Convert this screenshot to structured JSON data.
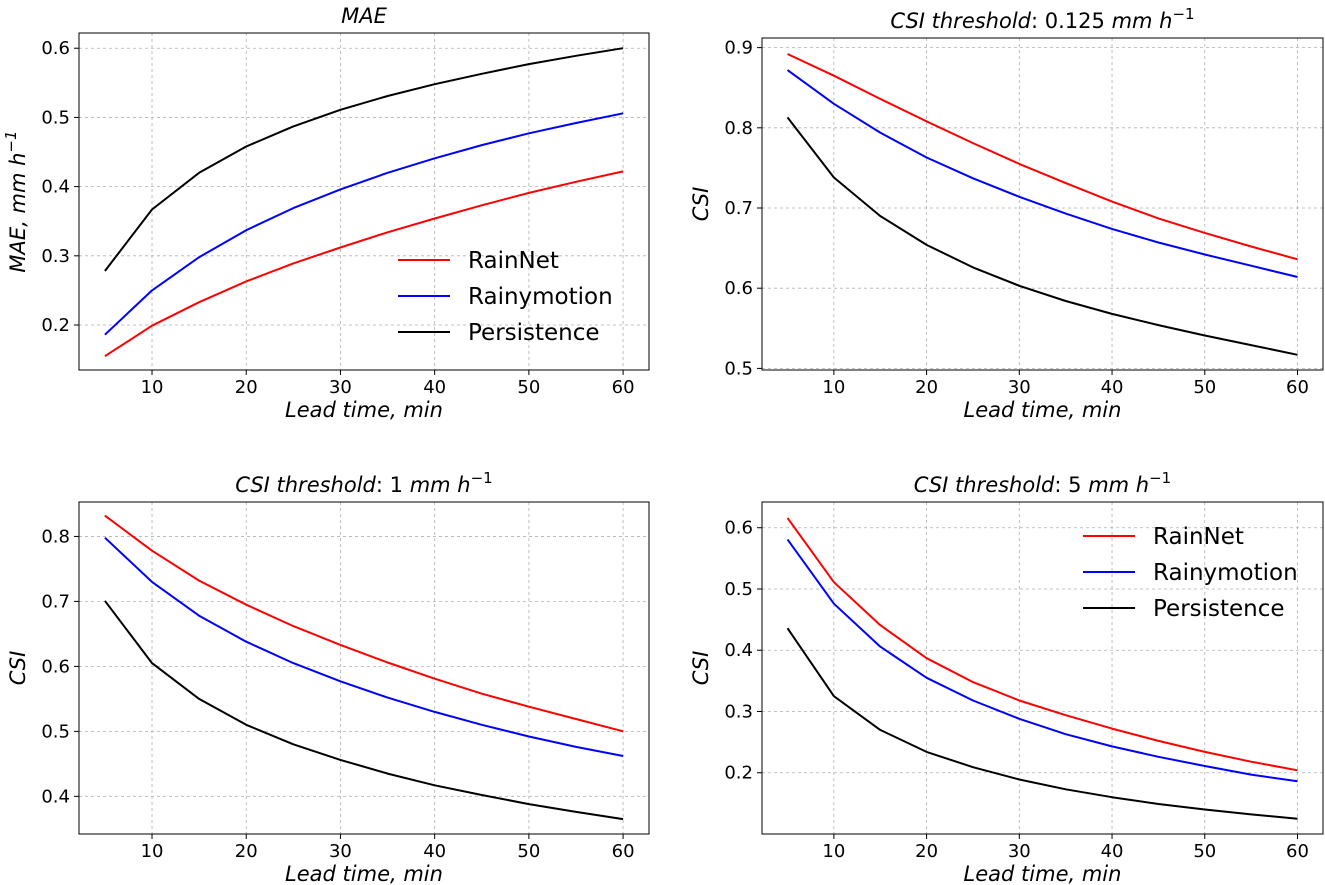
{
  "chart_data": [
    {
      "type": "line",
      "title": "MAE",
      "xlabel": "Lead time, min",
      "ylabel": "MAE, mm h⁻¹",
      "x": [
        5,
        10,
        15,
        20,
        25,
        30,
        35,
        40,
        45,
        50,
        55,
        60
      ],
      "xlim": [
        2.25,
        62.75
      ],
      "xticks": [
        10,
        20,
        30,
        40,
        50,
        60
      ],
      "ylim": [
        0.135,
        0.622
      ],
      "yticks": [
        0.2,
        0.3,
        0.4,
        0.5,
        0.6
      ],
      "ytick_labels": [
        "0.2",
        "0.3",
        "0.4",
        "0.5",
        "0.6"
      ],
      "grid": true,
      "legend": "lower-right",
      "series": [
        {
          "name": "RainNet",
          "color": "#ff0000",
          "values": [
            0.155,
            0.199,
            0.233,
            0.263,
            0.289,
            0.312,
            0.334,
            0.354,
            0.373,
            0.391,
            0.407,
            0.422
          ]
        },
        {
          "name": "Rainymotion",
          "color": "#0000ff",
          "values": [
            0.186,
            0.25,
            0.298,
            0.337,
            0.369,
            0.396,
            0.42,
            0.441,
            0.46,
            0.477,
            0.492,
            0.506
          ]
        },
        {
          "name": "Persistence",
          "color": "#000000",
          "values": [
            0.278,
            0.367,
            0.42,
            0.458,
            0.487,
            0.511,
            0.531,
            0.548,
            0.563,
            0.577,
            0.589,
            0.6
          ]
        }
      ]
    },
    {
      "type": "line",
      "title_prefix": "CSI threshold",
      "title_value": "0.125",
      "title_unit": "mm h⁻¹",
      "xlabel": "Lead time, min",
      "ylabel": "CSI",
      "x": [
        5,
        10,
        15,
        20,
        25,
        30,
        35,
        40,
        45,
        50,
        55,
        60
      ],
      "xlim": [
        2.25,
        62.75
      ],
      "xticks": [
        10,
        20,
        30,
        40,
        50,
        60
      ],
      "ylim": [
        0.498,
        0.912
      ],
      "yticks": [
        0.5,
        0.6,
        0.7,
        0.8,
        0.9
      ],
      "ytick_labels": [
        "0.5",
        "0.6",
        "0.7",
        "0.8",
        "0.9"
      ],
      "grid": true,
      "legend": "none",
      "series": [
        {
          "name": "RainNet",
          "color": "#ff0000",
          "values": [
            0.892,
            0.865,
            0.836,
            0.808,
            0.781,
            0.755,
            0.731,
            0.708,
            0.687,
            0.669,
            0.652,
            0.636
          ]
        },
        {
          "name": "Rainymotion",
          "color": "#0000ff",
          "values": [
            0.872,
            0.83,
            0.794,
            0.763,
            0.737,
            0.714,
            0.693,
            0.674,
            0.657,
            0.642,
            0.628,
            0.614
          ]
        },
        {
          "name": "Persistence",
          "color": "#000000",
          "values": [
            0.813,
            0.738,
            0.69,
            0.654,
            0.626,
            0.603,
            0.584,
            0.568,
            0.554,
            0.541,
            0.529,
            0.517
          ]
        }
      ]
    },
    {
      "type": "line",
      "title_prefix": "CSI threshold",
      "title_value": "1",
      "title_unit": "mm h⁻¹",
      "xlabel": "Lead time, min",
      "ylabel": "CSI",
      "x": [
        5,
        10,
        15,
        20,
        25,
        30,
        35,
        40,
        45,
        50,
        55,
        60
      ],
      "xlim": [
        2.25,
        62.75
      ],
      "xticks": [
        10,
        20,
        30,
        40,
        50,
        60
      ],
      "ylim": [
        0.342,
        0.853
      ],
      "yticks": [
        0.4,
        0.5,
        0.6,
        0.7,
        0.8
      ],
      "ytick_labels": [
        "0.4",
        "0.5",
        "0.6",
        "0.7",
        "0.8"
      ],
      "grid": true,
      "legend": "none",
      "series": [
        {
          "name": "RainNet",
          "color": "#ff0000",
          "values": [
            0.832,
            0.778,
            0.732,
            0.695,
            0.662,
            0.633,
            0.606,
            0.581,
            0.558,
            0.538,
            0.519,
            0.5
          ]
        },
        {
          "name": "Rainymotion",
          "color": "#0000ff",
          "values": [
            0.798,
            0.73,
            0.678,
            0.638,
            0.605,
            0.577,
            0.552,
            0.53,
            0.51,
            0.492,
            0.476,
            0.462
          ]
        },
        {
          "name": "Persistence",
          "color": "#000000",
          "values": [
            0.701,
            0.605,
            0.55,
            0.51,
            0.48,
            0.456,
            0.435,
            0.417,
            0.402,
            0.388,
            0.376,
            0.365
          ]
        }
      ]
    },
    {
      "type": "line",
      "title_prefix": "CSI threshold",
      "title_value": "5",
      "title_unit": "mm h⁻¹",
      "xlabel": "Lead time, min",
      "ylabel": "CSI",
      "x": [
        5,
        10,
        15,
        20,
        25,
        30,
        35,
        40,
        45,
        50,
        55,
        60
      ],
      "xlim": [
        2.25,
        62.75
      ],
      "xticks": [
        10,
        20,
        30,
        40,
        50,
        60
      ],
      "ylim": [
        0.1,
        0.642
      ],
      "yticks": [
        0.2,
        0.3,
        0.4,
        0.5,
        0.6
      ],
      "ytick_labels": [
        "0.2",
        "0.3",
        "0.4",
        "0.5",
        "0.6"
      ],
      "grid": true,
      "legend": "upper-right",
      "series": [
        {
          "name": "RainNet",
          "color": "#ff0000",
          "values": [
            0.616,
            0.511,
            0.441,
            0.387,
            0.348,
            0.318,
            0.294,
            0.272,
            0.252,
            0.234,
            0.218,
            0.204
          ]
        },
        {
          "name": "Rainymotion",
          "color": "#0000ff",
          "values": [
            0.581,
            0.476,
            0.406,
            0.355,
            0.318,
            0.288,
            0.263,
            0.243,
            0.226,
            0.211,
            0.197,
            0.186
          ]
        },
        {
          "name": "Persistence",
          "color": "#000000",
          "values": [
            0.436,
            0.325,
            0.27,
            0.234,
            0.209,
            0.189,
            0.173,
            0.16,
            0.149,
            0.14,
            0.132,
            0.125
          ]
        }
      ]
    }
  ]
}
